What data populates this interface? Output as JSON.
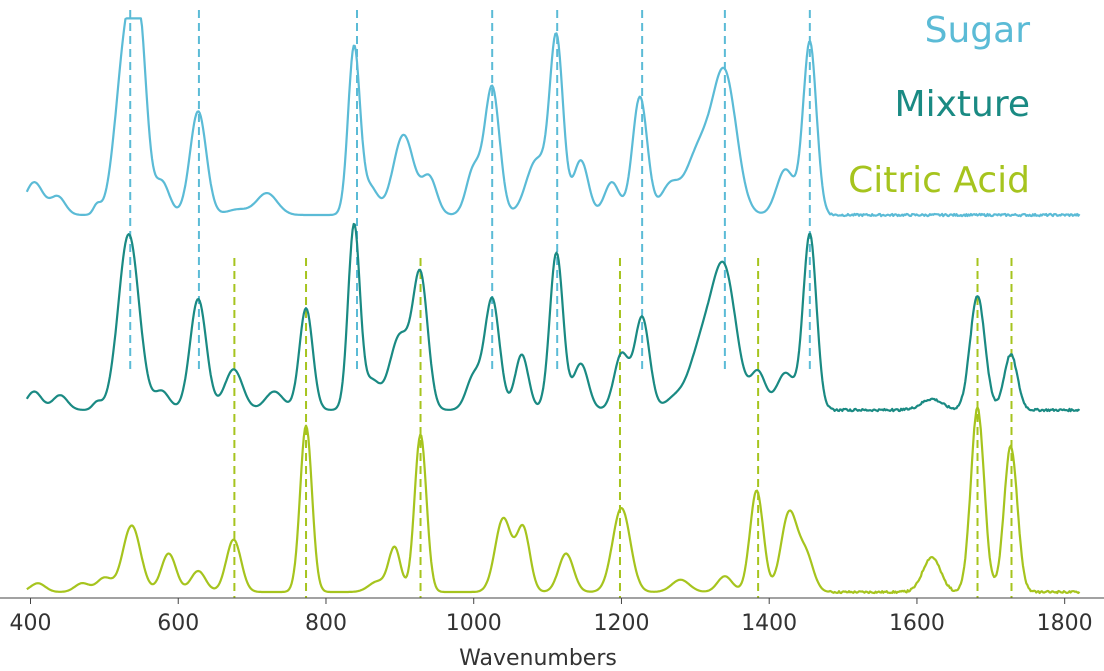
{
  "chart_data": {
    "type": "line",
    "title": "",
    "xlabel": "Wavenumbers",
    "ylabel": "",
    "xlim": [
      395,
      1800
    ],
    "xticks": [
      400,
      600,
      800,
      1000,
      1200,
      1400,
      1600,
      1800
    ],
    "grid": false,
    "legend_placement": "top-right",
    "series": [
      {
        "name": "Sugar",
        "color": "#5bbbd6",
        "peaks": [
          {
            "x": 530,
            "h": 0.97,
            "w": 14
          },
          {
            "x": 548,
            "h": 0.75,
            "w": 10
          },
          {
            "x": 578,
            "h": 0.18,
            "w": 10
          },
          {
            "x": 627,
            "h": 0.57,
            "w": 11
          },
          {
            "x": 437,
            "h": 0.1,
            "w": 10
          },
          {
            "x": 490,
            "h": 0.05,
            "w": 5
          },
          {
            "x": 405,
            "h": 0.18,
            "w": 12
          },
          {
            "x": 680,
            "h": 0.03,
            "w": 14
          },
          {
            "x": 720,
            "h": 0.12,
            "w": 14
          },
          {
            "x": 838,
            "h": 0.92,
            "w": 8
          },
          {
            "x": 860,
            "h": 0.15,
            "w": 10
          },
          {
            "x": 905,
            "h": 0.44,
            "w": 14
          },
          {
            "x": 940,
            "h": 0.2,
            "w": 10
          },
          {
            "x": 1000,
            "h": 0.25,
            "w": 10
          },
          {
            "x": 1025,
            "h": 0.7,
            "w": 10
          },
          {
            "x": 1085,
            "h": 0.3,
            "w": 14
          },
          {
            "x": 1112,
            "h": 0.95,
            "w": 9
          },
          {
            "x": 1145,
            "h": 0.3,
            "w": 10
          },
          {
            "x": 1187,
            "h": 0.18,
            "w": 10
          },
          {
            "x": 1225,
            "h": 0.65,
            "w": 10
          },
          {
            "x": 1265,
            "h": 0.15,
            "w": 12
          },
          {
            "x": 1305,
            "h": 0.35,
            "w": 18
          },
          {
            "x": 1340,
            "h": 0.75,
            "w": 16
          },
          {
            "x": 1422,
            "h": 0.25,
            "w": 12
          },
          {
            "x": 1455,
            "h": 0.95,
            "w": 9
          }
        ]
      },
      {
        "name": "Mixture",
        "color": "#1a8a83",
        "peaks": [
          {
            "x": 533,
            "h": 0.95,
            "w": 14
          },
          {
            "x": 405,
            "h": 0.1,
            "w": 10
          },
          {
            "x": 440,
            "h": 0.08,
            "w": 10
          },
          {
            "x": 490,
            "h": 0.04,
            "w": 6
          },
          {
            "x": 578,
            "h": 0.1,
            "w": 10
          },
          {
            "x": 627,
            "h": 0.6,
            "w": 11
          },
          {
            "x": 675,
            "h": 0.22,
            "w": 12
          },
          {
            "x": 730,
            "h": 0.1,
            "w": 12
          },
          {
            "x": 773,
            "h": 0.55,
            "w": 9
          },
          {
            "x": 838,
            "h": 1.0,
            "w": 8
          },
          {
            "x": 862,
            "h": 0.15,
            "w": 10
          },
          {
            "x": 900,
            "h": 0.4,
            "w": 14
          },
          {
            "x": 928,
            "h": 0.7,
            "w": 10
          },
          {
            "x": 1000,
            "h": 0.18,
            "w": 10
          },
          {
            "x": 1025,
            "h": 0.6,
            "w": 10
          },
          {
            "x": 1065,
            "h": 0.3,
            "w": 9
          },
          {
            "x": 1112,
            "h": 0.85,
            "w": 9
          },
          {
            "x": 1145,
            "h": 0.25,
            "w": 10
          },
          {
            "x": 1200,
            "h": 0.3,
            "w": 10
          },
          {
            "x": 1228,
            "h": 0.5,
            "w": 10
          },
          {
            "x": 1270,
            "h": 0.05,
            "w": 12
          },
          {
            "x": 1310,
            "h": 0.35,
            "w": 18
          },
          {
            "x": 1340,
            "h": 0.7,
            "w": 16
          },
          {
            "x": 1385,
            "h": 0.2,
            "w": 10
          },
          {
            "x": 1422,
            "h": 0.2,
            "w": 12
          },
          {
            "x": 1455,
            "h": 0.95,
            "w": 9
          },
          {
            "x": 1620,
            "h": 0.06,
            "w": 14
          },
          {
            "x": 1682,
            "h": 0.62,
            "w": 10
          },
          {
            "x": 1727,
            "h": 0.3,
            "w": 9
          }
        ]
      },
      {
        "name": "Citric Acid",
        "color": "#a6c41e",
        "peaks": [
          {
            "x": 410,
            "h": 0.05,
            "w": 10
          },
          {
            "x": 470,
            "h": 0.05,
            "w": 10
          },
          {
            "x": 500,
            "h": 0.08,
            "w": 10
          },
          {
            "x": 537,
            "h": 0.38,
            "w": 12
          },
          {
            "x": 587,
            "h": 0.22,
            "w": 10
          },
          {
            "x": 627,
            "h": 0.12,
            "w": 10
          },
          {
            "x": 675,
            "h": 0.3,
            "w": 10
          },
          {
            "x": 773,
            "h": 0.95,
            "w": 8
          },
          {
            "x": 870,
            "h": 0.06,
            "w": 12
          },
          {
            "x": 893,
            "h": 0.25,
            "w": 8
          },
          {
            "x": 928,
            "h": 0.9,
            "w": 8
          },
          {
            "x": 1040,
            "h": 0.42,
            "w": 11
          },
          {
            "x": 1067,
            "h": 0.36,
            "w": 9
          },
          {
            "x": 1125,
            "h": 0.22,
            "w": 10
          },
          {
            "x": 1200,
            "h": 0.48,
            "w": 12
          },
          {
            "x": 1280,
            "h": 0.07,
            "w": 12
          },
          {
            "x": 1340,
            "h": 0.09,
            "w": 10
          },
          {
            "x": 1383,
            "h": 0.58,
            "w": 9
          },
          {
            "x": 1427,
            "h": 0.45,
            "w": 11
          },
          {
            "x": 1450,
            "h": 0.2,
            "w": 10
          },
          {
            "x": 1620,
            "h": 0.2,
            "w": 12
          },
          {
            "x": 1682,
            "h": 1.05,
            "w": 9
          },
          {
            "x": 1727,
            "h": 0.83,
            "w": 9
          }
        ]
      }
    ],
    "reference_lines": [
      {
        "series": "Sugar",
        "color": "#5bbbd6",
        "x": [
          535,
          628,
          842,
          1025,
          1113,
          1228,
          1340,
          1455
        ]
      },
      {
        "series": "Citric Acid",
        "color": "#a6c41e",
        "x": [
          676,
          773,
          928,
          1198,
          1385,
          1682,
          1728
        ]
      }
    ]
  }
}
